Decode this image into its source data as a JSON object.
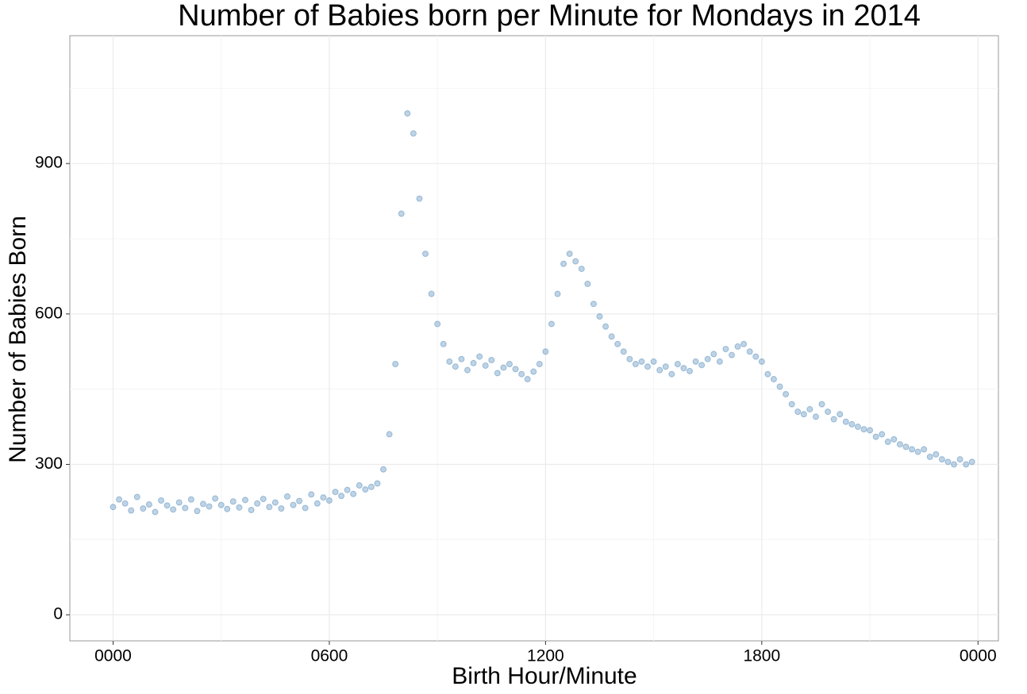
{
  "chart_data": {
    "type": "scatter",
    "title": "Number of Babies born per Minute for Mondays in 2014",
    "x_label": "Birth Hour/Minute",
    "y_label": "Number of Babies Born",
    "color": "#4682b4",
    "grid": true,
    "x": [
      0,
      10,
      20,
      30,
      40,
      50,
      60,
      70,
      80,
      90,
      100,
      110,
      120,
      130,
      140,
      150,
      160,
      170,
      180,
      190,
      200,
      210,
      220,
      230,
      240,
      250,
      260,
      270,
      280,
      290,
      300,
      310,
      320,
      330,
      340,
      350,
      360,
      370,
      380,
      390,
      400,
      410,
      420,
      430,
      440,
      450,
      460,
      470,
      480,
      490,
      500,
      510,
      520,
      530,
      540,
      550,
      560,
      570,
      580,
      590,
      600,
      610,
      620,
      630,
      640,
      650,
      660,
      670,
      680,
      690,
      700,
      710,
      720,
      730,
      740,
      750,
      760,
      770,
      780,
      790,
      800,
      810,
      820,
      830,
      840,
      850,
      860,
      870,
      880,
      890,
      900,
      910,
      920,
      930,
      940,
      950,
      960,
      970,
      980,
      990,
      1000,
      1010,
      1020,
      1030,
      1040,
      1050,
      1060,
      1070,
      1080,
      1090,
      1100,
      1110,
      1120,
      1130,
      1140,
      1150,
      1160,
      1170,
      1180,
      1190,
      1200,
      1210,
      1220,
      1230,
      1240,
      1250,
      1260,
      1270,
      1280,
      1290,
      1300,
      1310,
      1320,
      1330,
      1340,
      1350,
      1360,
      1370,
      1380,
      1390,
      1400,
      1410,
      1420,
      1430
    ],
    "values": [
      215,
      230,
      222,
      208,
      235,
      212,
      220,
      205,
      228,
      218,
      210,
      224,
      213,
      230,
      207,
      221,
      216,
      232,
      219,
      211,
      226,
      214,
      229,
      209,
      222,
      231,
      215,
      224,
      212,
      236,
      219,
      227,
      213,
      240,
      222,
      234,
      228,
      245,
      237,
      249,
      241,
      258,
      250,
      255,
      262,
      290,
      360,
      500,
      800,
      1000,
      960,
      830,
      720,
      640,
      580,
      540,
      505,
      495,
      510,
      488,
      502,
      515,
      497,
      508,
      482,
      493,
      500,
      490,
      480,
      470,
      485,
      500,
      525,
      580,
      640,
      700,
      720,
      705,
      690,
      660,
      620,
      595,
      575,
      555,
      540,
      525,
      510,
      500,
      505,
      495,
      505,
      488,
      495,
      480,
      500,
      492,
      486,
      505,
      498,
      510,
      520,
      505,
      530,
      518,
      535,
      540,
      525,
      515,
      505,
      480,
      470,
      455,
      440,
      420,
      405,
      400,
      410,
      395,
      420,
      405,
      390,
      400,
      385,
      380,
      375,
      370,
      368,
      355,
      360,
      345,
      350,
      340,
      335,
      330,
      325,
      330,
      315,
      320,
      310,
      305,
      300,
      310,
      300,
      305
    ],
    "xlim": [
      -72,
      1474
    ],
    "ylim": [
      -52,
      1155
    ],
    "xticks": [
      {
        "value": 0,
        "label": "0000"
      },
      {
        "value": 360,
        "label": "0600"
      },
      {
        "value": 720,
        "label": "1200"
      },
      {
        "value": 1080,
        "label": "1800"
      },
      {
        "value": 1440,
        "label": "0000"
      }
    ],
    "yticks": [
      0,
      300,
      600,
      900
    ],
    "x_minor_ticks": [
      180,
      540,
      900,
      1260
    ],
    "y_minor_ticks": [
      150,
      450,
      750,
      1050
    ]
  }
}
